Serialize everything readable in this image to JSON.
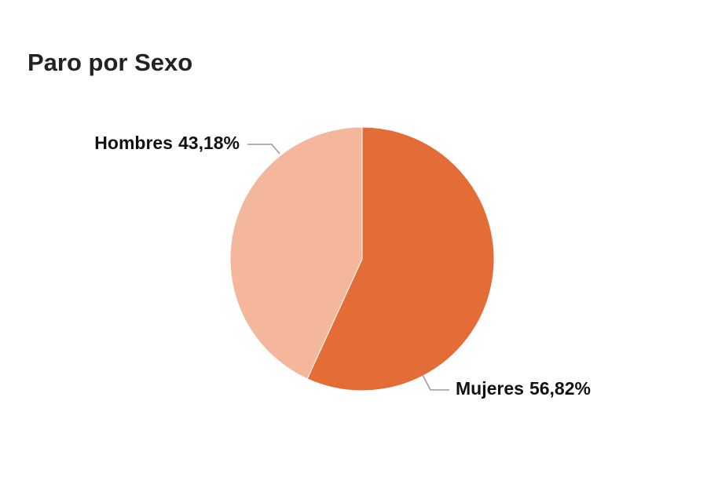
{
  "chart_data": {
    "type": "pie",
    "title": "Paro por Sexo",
    "categories": [
      "Mujeres",
      "Hombres"
    ],
    "values": [
      56.82,
      43.18
    ],
    "value_labels": [
      "56,82%",
      "43,18%"
    ],
    "colors": [
      "#e36c37",
      "#f5b79c"
    ]
  }
}
